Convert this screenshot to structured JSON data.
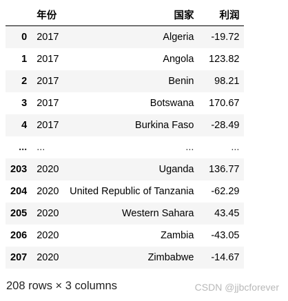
{
  "table": {
    "columns": {
      "index": "",
      "year": "年份",
      "country": "国家",
      "profit": "利润"
    },
    "rows": [
      {
        "index": "0",
        "year": "2017",
        "country": "Algeria",
        "profit": "-19.72"
      },
      {
        "index": "1",
        "year": "2017",
        "country": "Angola",
        "profit": "123.82"
      },
      {
        "index": "2",
        "year": "2017",
        "country": "Benin",
        "profit": "98.21"
      },
      {
        "index": "3",
        "year": "2017",
        "country": "Botswana",
        "profit": "170.67"
      },
      {
        "index": "4",
        "year": "2017",
        "country": "Burkina Faso",
        "profit": "-28.49"
      },
      {
        "index": "...",
        "year": "...",
        "country": "...",
        "profit": "..."
      },
      {
        "index": "203",
        "year": "2020",
        "country": "Uganda",
        "profit": "136.77"
      },
      {
        "index": "204",
        "year": "2020",
        "country": "United Republic of Tanzania",
        "profit": "-62.29"
      },
      {
        "index": "205",
        "year": "2020",
        "country": "Western Sahara",
        "profit": "43.45"
      },
      {
        "index": "206",
        "year": "2020",
        "country": "Zambia",
        "profit": "-43.05"
      },
      {
        "index": "207",
        "year": "2020",
        "country": "Zimbabwe",
        "profit": "-14.67"
      }
    ]
  },
  "shape_note": "208 rows × 3 columns",
  "watermark": "CSDN @jjbcforever"
}
